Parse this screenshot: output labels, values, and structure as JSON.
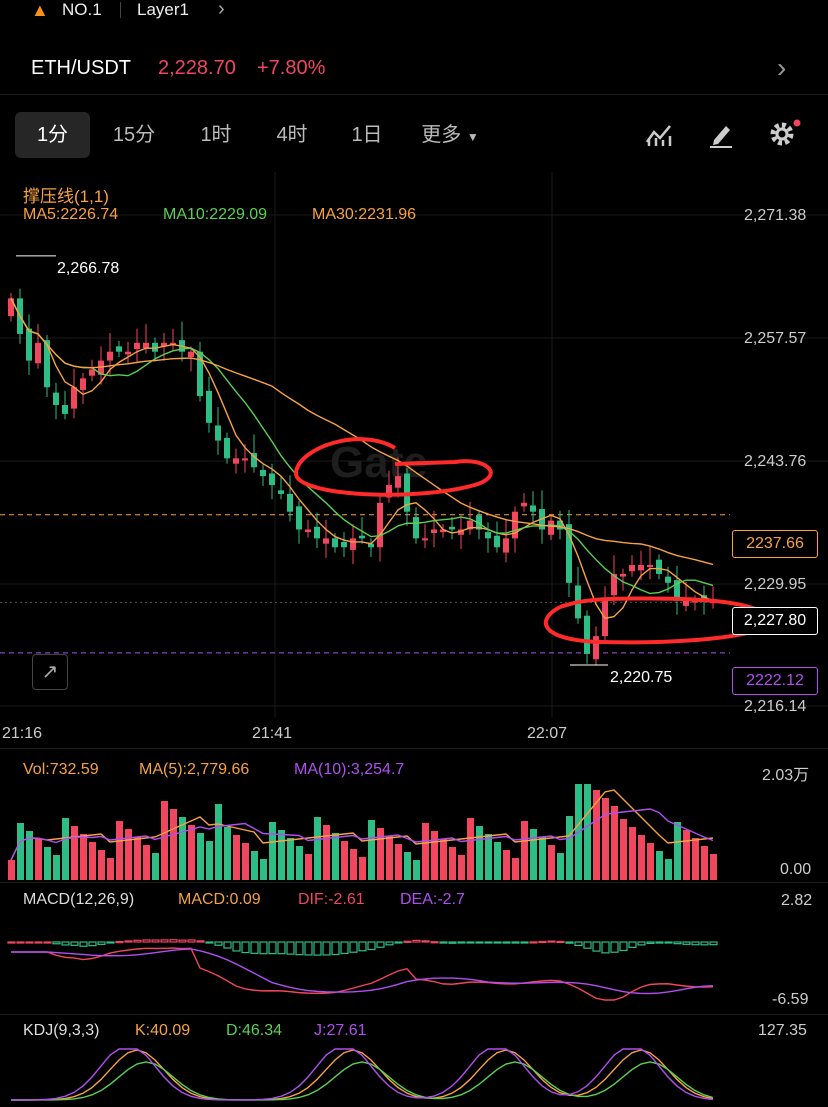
{
  "topbar": {
    "rank": "NO.1",
    "network": "Layer1"
  },
  "pair": {
    "symbol": "ETH/USDT",
    "price": "2,228.70",
    "change": "+7.80%"
  },
  "tabs": [
    "1分",
    "15分",
    "1时",
    "4时",
    "1日",
    "更多"
  ],
  "active_tab": 0,
  "icons": {
    "indicator": "indicator-icon",
    "draw": "pen-icon",
    "settings": "gear-icon"
  },
  "colors": {
    "up": "#f0465e",
    "down": "#2ebd85",
    "ma5": "#f7a243",
    "ma10": "#5ad053",
    "ma30": "#f7a243",
    "dif": "#f0465e",
    "dea": "#b04ff0"
  },
  "main": {
    "indicator": "撑压线(1,1)",
    "ma5": "MA5:2226.74",
    "ma10": "MA10:2229.09",
    "ma30": "MA30:2231.96",
    "y_ticks": [
      "2,271.38",
      "2,257.57",
      "2,243.76",
      "2,229.95",
      "2,216.14"
    ],
    "high_label": "2,266.78",
    "low_label": "2,220.75",
    "resistance": "2237.66",
    "support": "2222.12",
    "current": "2,227.80",
    "x_ticks": [
      "21:16",
      "21:41",
      "22:07"
    ],
    "watermark": "Gate"
  },
  "volume": {
    "vol": "Vol:732.59",
    "ma5": "MA(5):2,779.66",
    "ma10": "MA(10):3,254.7",
    "max": "2.03万",
    "min": "0.00"
  },
  "macd": {
    "label": "MACD(12,26,9)",
    "macd": "MACD:0.09",
    "dif": "DIF:-2.61",
    "dea": "DEA:-2.7",
    "max": "2.82",
    "min": "-6.59"
  },
  "kdj": {
    "label": "KDJ(9,3,3)",
    "k": "K:40.09",
    "d": "D:46.34",
    "j": "J:27.61",
    "max": "127.35"
  },
  "chart_data": {
    "type": "candlestick",
    "candles_close": [
      2262,
      2258,
      2255,
      2257,
      2252,
      2250,
      2249,
      2252,
      2253,
      2254,
      2255,
      2256,
      2256,
      2256,
      2257,
      2257,
      2256,
      2257,
      2257,
      2256,
      2256,
      2251,
      2248,
      2246,
      2244,
      2244,
      2244,
      2243,
      2242,
      2241,
      2240,
      2238,
      2236,
      2236,
      2235,
      2235,
      2234,
      2234,
      2235,
      2235,
      2234,
      2239,
      2241,
      2242,
      2238,
      2235,
      2235,
      2236,
      2236,
      2236,
      2236,
      2237,
      2236,
      2235,
      2234,
      2235,
      2238,
      2239,
      2238,
      2236,
      2237,
      2236,
      2230,
      2226,
      2222,
      2224,
      2228,
      2231,
      2231,
      2232,
      2232,
      2232,
      2231,
      2230,
      2228,
      2228,
      2228,
      2228,
      2228
    ],
    "ylim": [
      2216.14,
      2271.38
    ],
    "high": 2266.78,
    "low": 2220.75,
    "resistance": 2237.66,
    "support": 2222.12,
    "last": 2227.8
  }
}
